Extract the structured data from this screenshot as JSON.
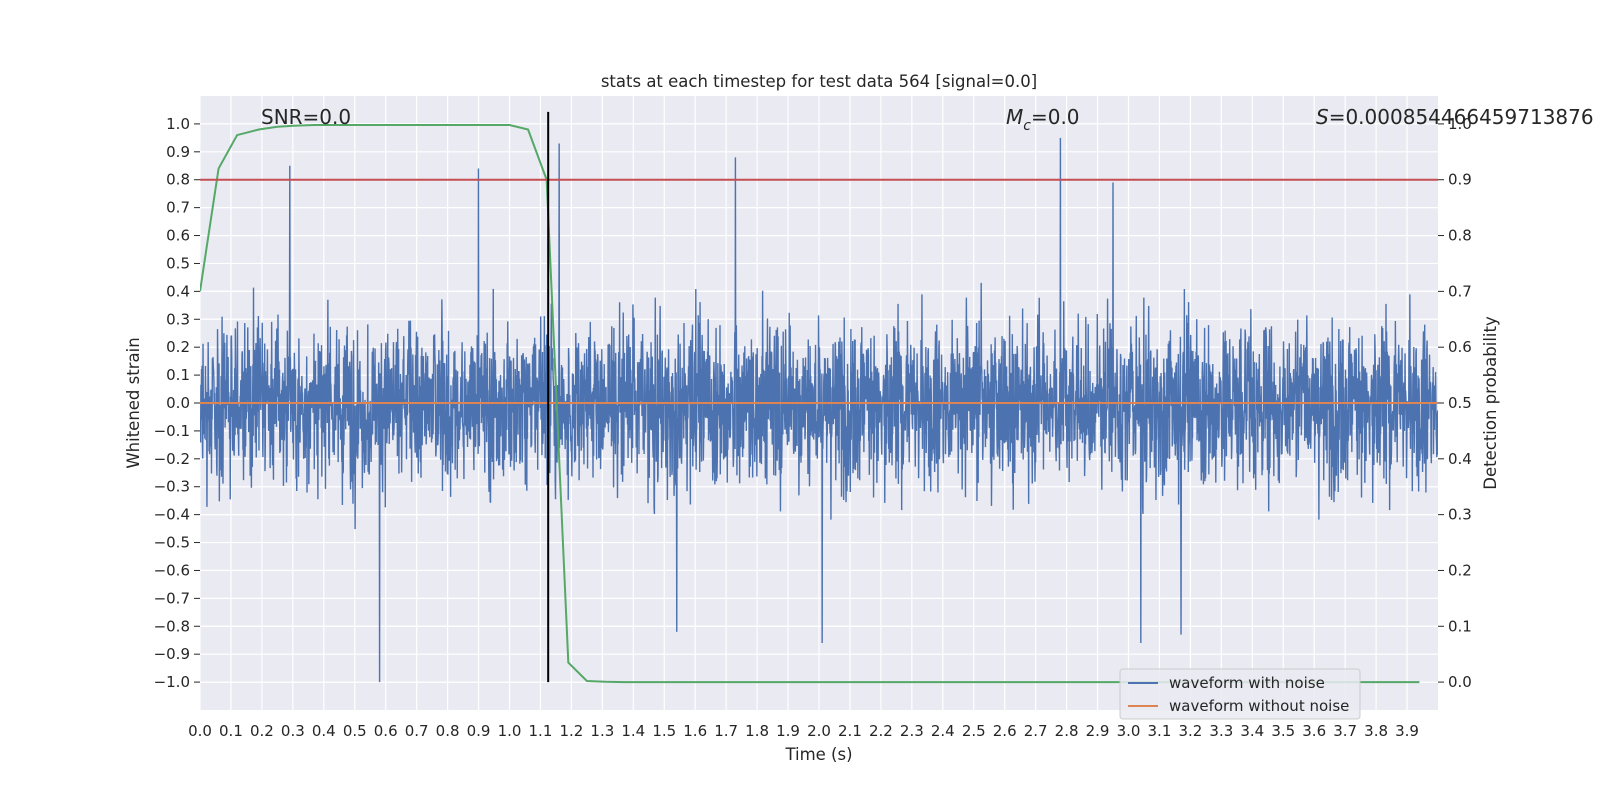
{
  "chart_data": {
    "type": "line",
    "title": "stats at each timestep for test data 564 [signal=0.0]",
    "xlabel": "Time (s)",
    "ylabel": "Whitened strain",
    "y2label": "Detection probability",
    "xlim": [
      0.0,
      4.0
    ],
    "ylim": [
      -1.1,
      1.1
    ],
    "y2lim": [
      -0.05,
      1.05
    ],
    "x_ticks": [
      "0.0",
      "0.1",
      "0.2",
      "0.3",
      "0.4",
      "0.5",
      "0.6",
      "0.7",
      "0.8",
      "0.9",
      "1.0",
      "1.1",
      "1.2",
      "1.3",
      "1.4",
      "1.5",
      "1.6",
      "1.7",
      "1.8",
      "1.9",
      "2.0",
      "2.1",
      "2.2",
      "2.3",
      "2.4",
      "2.5",
      "2.6",
      "2.7",
      "2.8",
      "2.9",
      "3.0",
      "3.1",
      "3.2",
      "3.3",
      "3.4",
      "3.5",
      "3.6",
      "3.7",
      "3.8",
      "3.9"
    ],
    "y_ticks": [
      "1.0",
      "0.9",
      "0.8",
      "0.7",
      "0.6",
      "0.5",
      "0.4",
      "0.3",
      "0.2",
      "0.1",
      "0.0",
      "−0.1",
      "−0.2",
      "−0.3",
      "−0.4",
      "−0.5",
      "−0.6",
      "−0.7",
      "−0.8",
      "−0.9",
      "−1.0"
    ],
    "y2_ticks": [
      "1.0",
      "0.9",
      "0.8",
      "0.7",
      "0.6",
      "0.5",
      "0.4",
      "0.3",
      "0.2",
      "0.1",
      "0.0"
    ],
    "grid": true,
    "legend_placement": "bottom-right",
    "annotations": {
      "snr": "SNR=0.0",
      "mc_symbol": "M",
      "mc_sub": "c",
      "mc_value": "=0.0",
      "s_symbol": "S",
      "s_value": "=0.000854466459713876"
    },
    "series": [
      {
        "name": "waveform with noise",
        "axis": "left",
        "color": "#4c72b0",
        "kind": "noise",
        "x_range": [
          0.0,
          4.0
        ],
        "y_range": [
          -1.0,
          1.0
        ],
        "peaks": [
          {
            "x": 0.58,
            "y": -1.0
          },
          {
            "x": 1.16,
            "y": 0.93
          },
          {
            "x": 2.78,
            "y": 0.95
          },
          {
            "x": 2.95,
            "y": 0.79
          },
          {
            "x": 1.73,
            "y": 0.88
          },
          {
            "x": 0.29,
            "y": 0.85
          },
          {
            "x": 0.9,
            "y": 0.84
          },
          {
            "x": 3.04,
            "y": -0.86
          },
          {
            "x": 2.01,
            "y": -0.86
          },
          {
            "x": 3.17,
            "y": -0.83
          },
          {
            "x": 1.54,
            "y": -0.82
          }
        ]
      },
      {
        "name": "waveform without noise",
        "axis": "left",
        "color": "#dd8452",
        "kind": "flat",
        "value": 0.0
      },
      {
        "name": "",
        "axis": "right",
        "color": "#55a868",
        "kind": "line",
        "x": [
          0.0,
          0.06,
          0.12,
          0.19,
          0.25,
          0.31,
          0.37,
          0.44,
          0.5,
          0.56,
          0.62,
          0.69,
          0.75,
          0.81,
          0.87,
          0.94,
          1.0,
          1.06,
          1.12,
          1.19,
          1.25,
          1.31,
          1.37,
          1.5,
          2.0,
          2.5,
          3.0,
          3.5,
          3.94
        ],
        "y": [
          0.7,
          0.92,
          0.98,
          0.99,
          0.995,
          0.997,
          0.998,
          0.998,
          0.998,
          0.998,
          0.998,
          0.998,
          0.998,
          0.998,
          0.998,
          0.998,
          0.998,
          0.99,
          0.9,
          0.035,
          0.002,
          0.0005,
          0.0,
          0.0,
          0.0,
          0.0,
          0.0,
          0.0,
          0.0
        ]
      },
      {
        "name": "",
        "axis": "right",
        "color": "#c44e52",
        "kind": "hline",
        "value": 0.9
      },
      {
        "name": "",
        "axis": "left",
        "color": "#000000",
        "kind": "vline",
        "x": 1.125,
        "y_range": [
          -1.0,
          1.0
        ]
      }
    ]
  }
}
